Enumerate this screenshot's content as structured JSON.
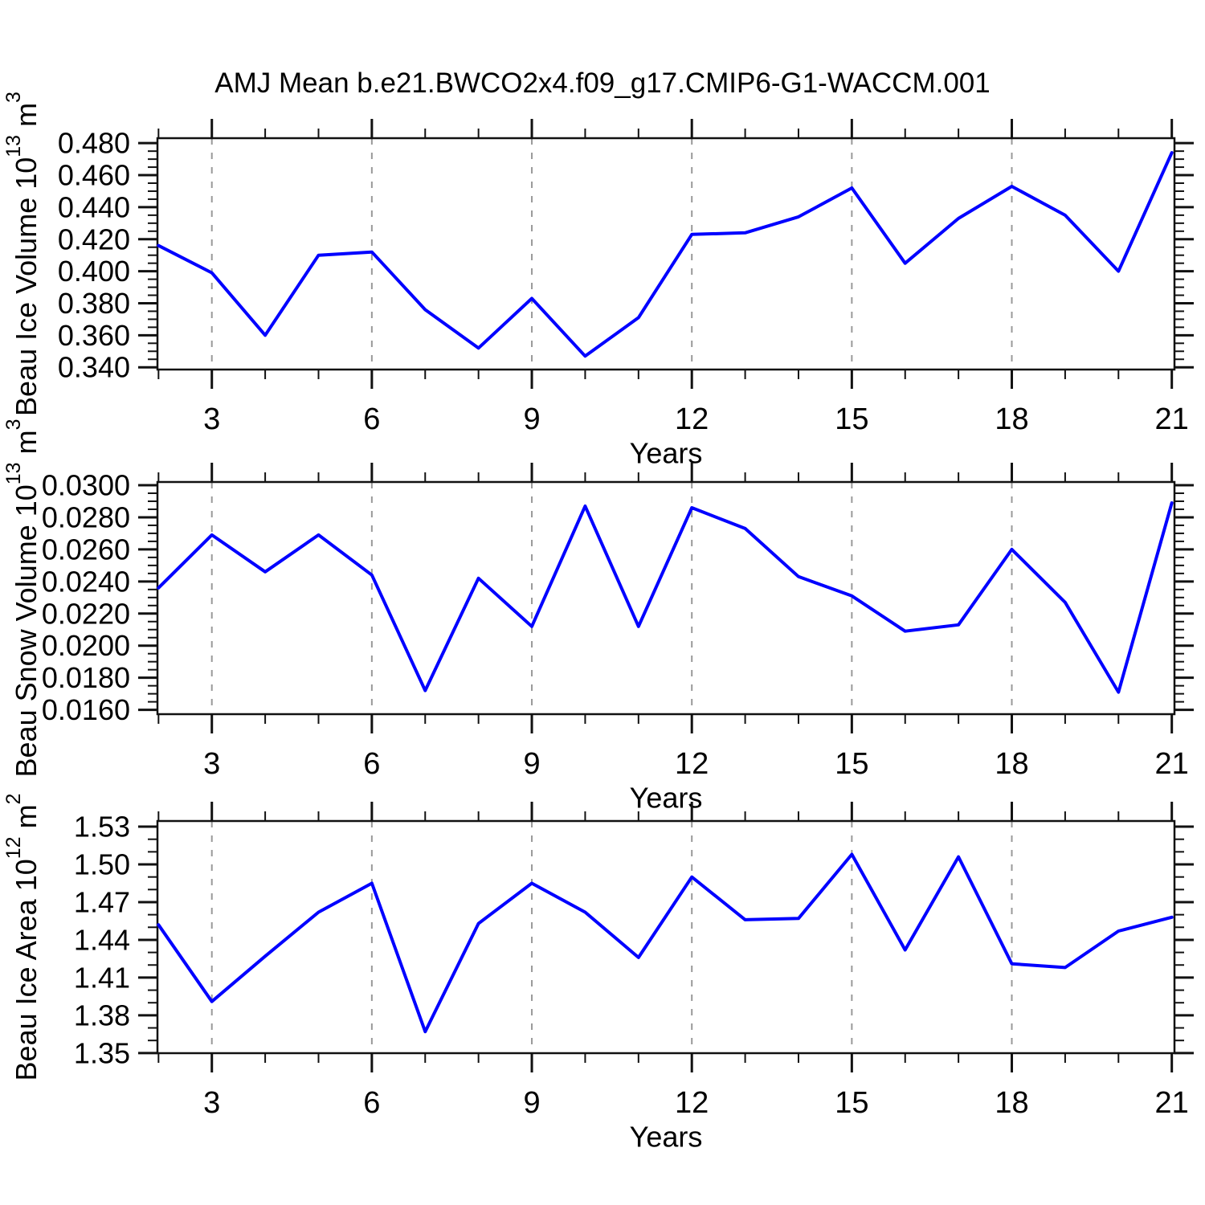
{
  "title": "AMJ Mean b.e21.BWCO2x4.f09_g17.CMIP6-G1-WACCM.001",
  "xlabel": "Years",
  "colors": {
    "line": "#0000ff",
    "grid": "#999999",
    "axis": "#111111",
    "text": "#000000",
    "background": "#ffffff"
  },
  "chart_data": [
    {
      "type": "line",
      "name": "beau-ice-volume",
      "ylabel_text": "Beau Ice Volume 10¹³ m³",
      "ylabel_segments": [
        {
          "t": "Beau Ice Volume 10"
        },
        {
          "t": "13",
          "sup": true
        },
        {
          "t": " m"
        },
        {
          "t": "3",
          "sup": true
        }
      ],
      "x": [
        2,
        3,
        4,
        5,
        6,
        7,
        8,
        9,
        10,
        11,
        12,
        13,
        14,
        15,
        16,
        17,
        18,
        19,
        20,
        21
      ],
      "values": [
        0.416,
        0.399,
        0.36,
        0.41,
        0.412,
        0.376,
        0.352,
        0.383,
        0.347,
        0.371,
        0.423,
        0.424,
        0.434,
        0.452,
        0.405,
        0.433,
        0.453,
        0.435,
        0.4,
        0.474
      ],
      "xlim": [
        1.98,
        21.05
      ],
      "xticks": [
        3,
        6,
        9,
        12,
        15,
        18,
        21
      ],
      "xtick_labels": [
        "3",
        "6",
        "9",
        "12",
        "15",
        "18",
        "21"
      ],
      "x_minor_step": 1,
      "grid_x": [
        3,
        6,
        9,
        12,
        15,
        18
      ],
      "ylim": [
        0.3386,
        0.4831
      ],
      "yticks": [
        0.34,
        0.36,
        0.38,
        0.4,
        0.42,
        0.44,
        0.46,
        0.48
      ],
      "ytick_labels": [
        "0.340",
        "0.360",
        "0.380",
        "0.400",
        "0.420",
        "0.440",
        "0.460",
        "0.480"
      ],
      "y_minor_step": 0.005
    },
    {
      "type": "line",
      "name": "beau-snow-volume",
      "ylabel_text": "Beau Snow Volume 10¹³ m³",
      "ylabel_segments": [
        {
          "t": "Beau Snow Volume 10"
        },
        {
          "t": "13",
          "sup": true
        },
        {
          "t": " m"
        },
        {
          "t": "3",
          "sup": true
        }
      ],
      "x": [
        2,
        3,
        4,
        5,
        6,
        7,
        8,
        9,
        10,
        11,
        12,
        13,
        14,
        15,
        16,
        17,
        18,
        19,
        20,
        21
      ],
      "values": [
        0.0236,
        0.0269,
        0.0246,
        0.0269,
        0.0244,
        0.0172,
        0.0242,
        0.0212,
        0.0287,
        0.0212,
        0.0286,
        0.0273,
        0.0243,
        0.0231,
        0.0209,
        0.0213,
        0.026,
        0.0227,
        0.0171,
        0.0289
      ],
      "xlim": [
        1.98,
        21.05
      ],
      "xticks": [
        3,
        6,
        9,
        12,
        15,
        18,
        21
      ],
      "xtick_labels": [
        "3",
        "6",
        "9",
        "12",
        "15",
        "18",
        "21"
      ],
      "x_minor_step": 1,
      "grid_x": [
        3,
        6,
        9,
        12,
        15,
        18
      ],
      "ylim": [
        0.01573,
        0.0302
      ],
      "yticks": [
        0.016,
        0.018,
        0.02,
        0.022,
        0.024,
        0.026,
        0.028,
        0.03
      ],
      "ytick_labels": [
        "0.0160",
        "0.0180",
        "0.0200",
        "0.0220",
        "0.0240",
        "0.0260",
        "0.0280",
        "0.0300"
      ],
      "y_minor_step": 0.0005
    },
    {
      "type": "line",
      "name": "beau-ice-area",
      "ylabel_text": "Beau Ice Area 10¹² m²",
      "ylabel_segments": [
        {
          "t": "Beau Ice Area 10"
        },
        {
          "t": "12",
          "sup": true
        },
        {
          "t": " m"
        },
        {
          "t": "2",
          "sup": true
        }
      ],
      "x": [
        2,
        3,
        4,
        5,
        6,
        7,
        8,
        9,
        10,
        11,
        12,
        13,
        14,
        15,
        16,
        17,
        18,
        19,
        20,
        21
      ],
      "values": [
        1.452,
        1.391,
        1.427,
        1.462,
        1.485,
        1.367,
        1.453,
        1.485,
        1.462,
        1.426,
        1.49,
        1.456,
        1.457,
        1.508,
        1.432,
        1.506,
        1.421,
        1.418,
        1.447,
        1.458
      ],
      "xlim": [
        1.98,
        21.05
      ],
      "xticks": [
        3,
        6,
        9,
        12,
        15,
        18,
        21
      ],
      "xtick_labels": [
        "3",
        "6",
        "9",
        "12",
        "15",
        "18",
        "21"
      ],
      "x_minor_step": 1,
      "grid_x": [
        3,
        6,
        9,
        12,
        15,
        18
      ],
      "ylim": [
        1.3499,
        1.5345
      ],
      "yticks": [
        1.35,
        1.38,
        1.41,
        1.44,
        1.47,
        1.5,
        1.53
      ],
      "ytick_labels": [
        "1.35",
        "1.38",
        "1.41",
        "1.44",
        "1.47",
        "1.50",
        "1.53"
      ],
      "y_minor_step": 0.01
    }
  ]
}
